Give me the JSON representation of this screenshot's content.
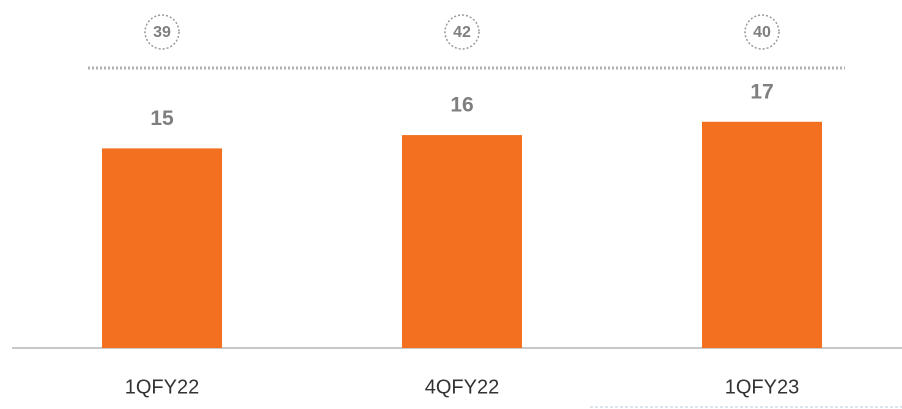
{
  "chart_data": {
    "type": "bar",
    "categories": [
      "1QFY22",
      "4QFY22",
      "1QFY23"
    ],
    "values": [
      15,
      16,
      17
    ],
    "circled_values": [
      39,
      42,
      40
    ],
    "color": "#f37021",
    "ylim": [
      0,
      26
    ]
  }
}
